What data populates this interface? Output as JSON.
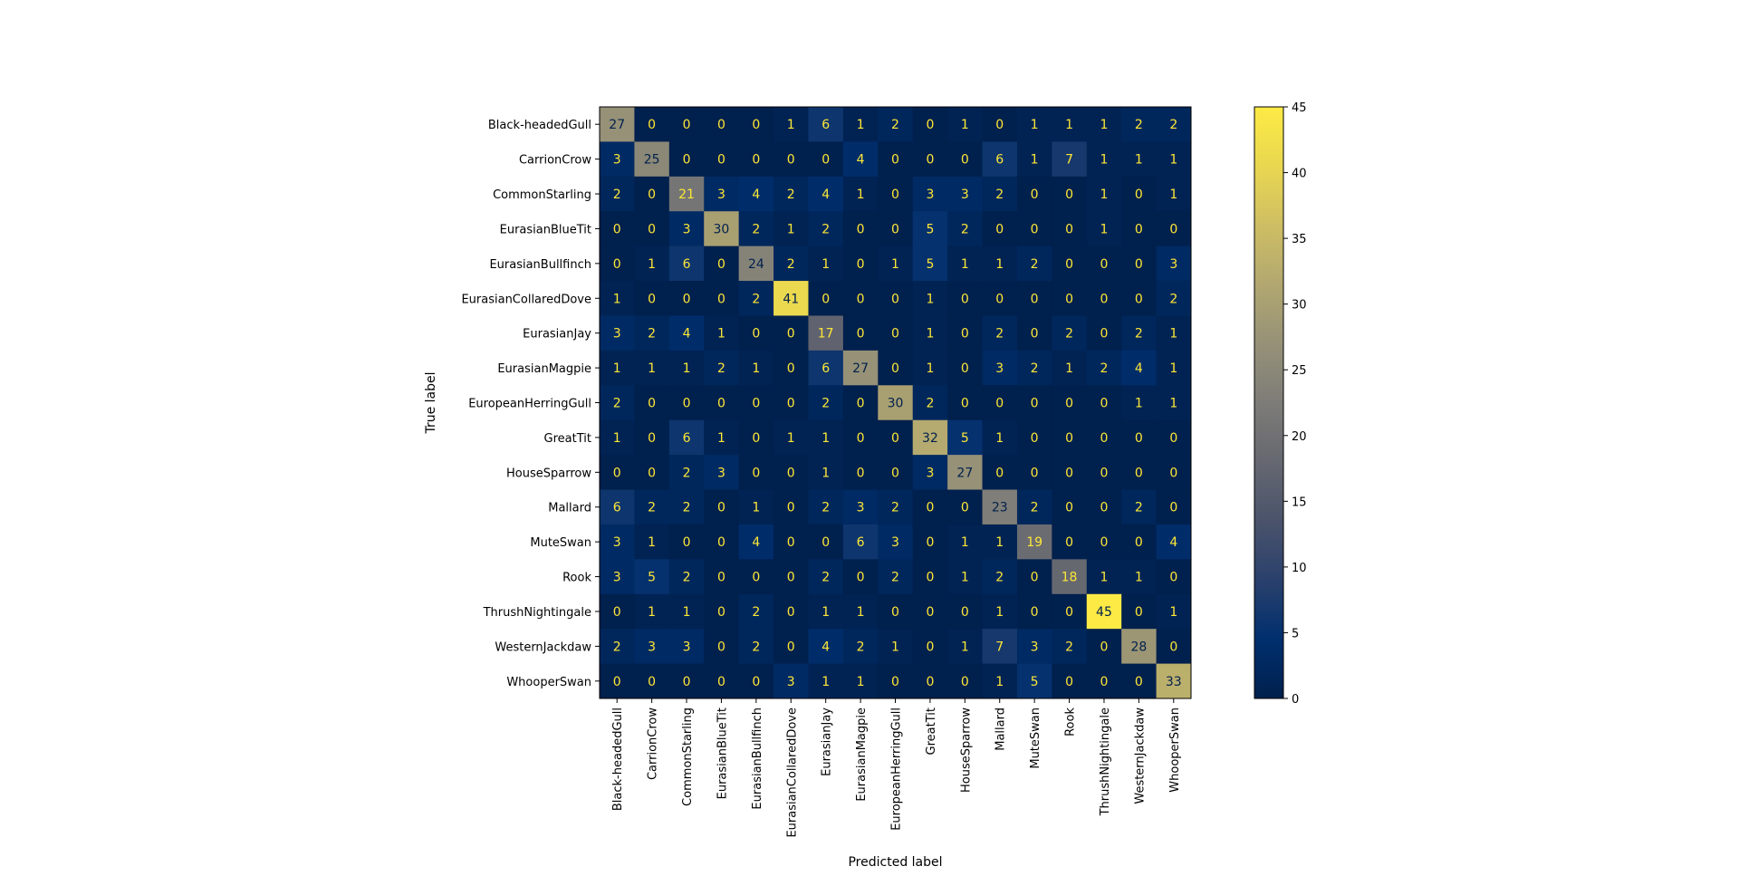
{
  "chart_data": {
    "type": "heatmap",
    "xlabel": "Predicted label",
    "ylabel": "True label",
    "labels": [
      "Black-headedGull",
      "CarrionCrow",
      "CommonStarling",
      "EurasianBlueTit",
      "EurasianBullfinch",
      "EurasianCollaredDove",
      "EurasianJay",
      "EurasianMagpie",
      "EuropeanHerringGull",
      "GreatTit",
      "HouseSparrow",
      "Mallard",
      "MuteSwan",
      "Rook",
      "ThrushNightingale",
      "WesternJackdaw",
      "WhooperSwan"
    ],
    "matrix": [
      [
        27,
        0,
        0,
        0,
        0,
        1,
        6,
        1,
        2,
        0,
        1,
        0,
        1,
        1,
        1,
        2,
        2
      ],
      [
        3,
        25,
        0,
        0,
        0,
        0,
        0,
        4,
        0,
        0,
        0,
        6,
        1,
        7,
        1,
        1,
        1
      ],
      [
        2,
        0,
        21,
        3,
        4,
        2,
        4,
        1,
        0,
        3,
        3,
        2,
        0,
        0,
        1,
        0,
        1
      ],
      [
        0,
        0,
        3,
        30,
        2,
        1,
        2,
        0,
        0,
        5,
        2,
        0,
        0,
        0,
        1,
        0,
        0
      ],
      [
        0,
        1,
        6,
        0,
        24,
        2,
        1,
        0,
        1,
        5,
        1,
        1,
        2,
        0,
        0,
        0,
        3
      ],
      [
        1,
        0,
        0,
        0,
        2,
        41,
        0,
        0,
        0,
        1,
        0,
        0,
        0,
        0,
        0,
        0,
        2
      ],
      [
        3,
        2,
        4,
        1,
        0,
        0,
        17,
        0,
        0,
        1,
        0,
        2,
        0,
        2,
        0,
        2,
        1
      ],
      [
        1,
        1,
        1,
        2,
        1,
        0,
        6,
        27,
        0,
        1,
        0,
        3,
        2,
        1,
        2,
        4,
        1
      ],
      [
        2,
        0,
        0,
        0,
        0,
        0,
        2,
        0,
        30,
        2,
        0,
        0,
        0,
        0,
        0,
        1,
        1
      ],
      [
        1,
        0,
        6,
        1,
        0,
        1,
        1,
        0,
        0,
        32,
        5,
        1,
        0,
        0,
        0,
        0,
        0
      ],
      [
        0,
        0,
        2,
        3,
        0,
        0,
        1,
        0,
        0,
        3,
        27,
        0,
        0,
        0,
        0,
        0,
        0
      ],
      [
        6,
        2,
        2,
        0,
        1,
        0,
        2,
        3,
        2,
        0,
        0,
        23,
        2,
        0,
        0,
        2,
        0
      ],
      [
        3,
        1,
        0,
        0,
        4,
        0,
        0,
        6,
        3,
        0,
        1,
        1,
        19,
        0,
        0,
        0,
        4
      ],
      [
        3,
        5,
        2,
        0,
        0,
        0,
        2,
        0,
        2,
        0,
        1,
        2,
        0,
        18,
        1,
        1,
        0
      ],
      [
        0,
        1,
        1,
        0,
        2,
        0,
        1,
        1,
        0,
        0,
        0,
        1,
        0,
        0,
        45,
        0,
        1
      ],
      [
        2,
        3,
        3,
        0,
        2,
        0,
        4,
        2,
        1,
        0,
        1,
        7,
        3,
        2,
        0,
        28,
        0
      ],
      [
        0,
        0,
        0,
        0,
        0,
        3,
        1,
        1,
        0,
        0,
        0,
        1,
        5,
        0,
        0,
        0,
        33
      ]
    ],
    "colormap": "cividis",
    "vmin": 0,
    "vmax": 45,
    "colorbar_ticks": [
      0,
      5,
      10,
      15,
      20,
      25,
      30,
      35,
      40,
      45
    ],
    "text_color_light": "#fde737",
    "text_color_dark": "#00204c"
  }
}
